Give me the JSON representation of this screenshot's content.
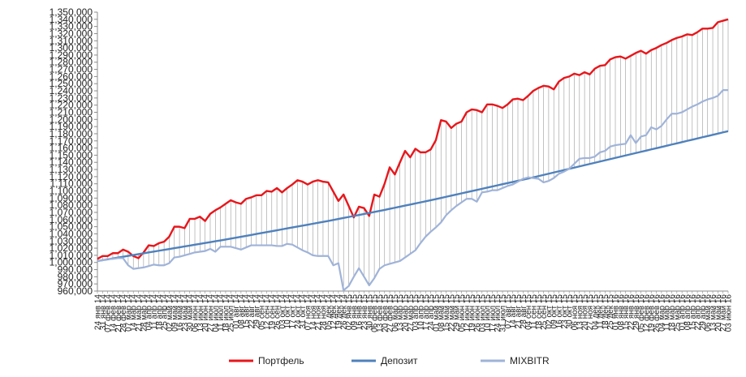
{
  "chart_data": {
    "type": "line",
    "title": "",
    "xlabel": "",
    "ylabel": "",
    "ylim": [
      960000,
      1350000
    ],
    "yticks": [
      960000,
      970000,
      980000,
      990000,
      1000000,
      1010000,
      1020000,
      1030000,
      1040000,
      1050000,
      1060000,
      1070000,
      1080000,
      1090000,
      1100000,
      1110000,
      1120000,
      1130000,
      1140000,
      1150000,
      1160000,
      1170000,
      1180000,
      1190000,
      1200000,
      1210000,
      1220000,
      1230000,
      1240000,
      1250000,
      1260000,
      1270000,
      1280000,
      1290000,
      1300000,
      1310000,
      1320000,
      1330000,
      1340000,
      1350000
    ],
    "ytick_labels": [
      "960,000",
      "970,000",
      "980,000",
      "990,000",
      "1,000,000",
      "1,010,000",
      "1,020,000",
      "1,030,000",
      "1,040,000",
      "1,050,000",
      "1,060,000",
      "1,070,000",
      "1,080,000",
      "1,090,000",
      "1,100,000",
      "1,110,000",
      "1,120,000",
      "1,130,000",
      "1,140,000",
      "1,150,000",
      "1,160,000",
      "1,170,000",
      "1,180,000",
      "1,190,000",
      "1,200,000",
      "1,210,000",
      "1,220,000",
      "1,230,000",
      "1,240,000",
      "1,250,000",
      "1,260,000",
      "1,270,000",
      "1,280,000",
      "1,290,000",
      "1,300,000",
      "1,310,000",
      "1,320,000",
      "1,330,000",
      "1,340,000",
      "1,350,000"
    ],
    "grid": "vertical drop lines between series",
    "legend_position": "bottom",
    "categories": [
      "24 янв 14",
      "31 янв 14",
      "07 фев 14",
      "14 фев 14",
      "21 фев 14",
      "28 фев 14",
      "07 мар 14",
      "14 мар 14",
      "21 мар 14",
      "28 мар 14",
      "04 апр 14",
      "11 апр 14",
      "18 апр 14",
      "25 апр 14",
      "02 май 14",
      "09 май 14",
      "16 май 14",
      "23 май 14",
      "30 май 14",
      "06 июн 14",
      "13 июн 14",
      "20 июн 14",
      "27 июн 14",
      "04 июл 14",
      "11 июл 14",
      "18 июл 14",
      "25 июл 14",
      "01 авг 14",
      "08 авг 14",
      "15 авг 14",
      "22 авг 14",
      "29 авг 14",
      "05 сен 14",
      "12 сен 14",
      "19 сен 14",
      "26 сен 14",
      "03 окт 14",
      "10 окт 14",
      "17 окт 14",
      "24 окт 14",
      "31 окт 14",
      "07 ноя 14",
      "14 ноя 14",
      "21 ноя 14",
      "28 ноя 14",
      "05 дек 14",
      "12 дек 14",
      "19 дек 14",
      "26 дек 14",
      "02 янв 15",
      "09 янв 15",
      "16 янв 15",
      "23 янв 15",
      "30 янв 15",
      "06 фев 15",
      "13 фев 15",
      "20 фев 15",
      "27 фев 15",
      "06 мар 15",
      "13 мар 15",
      "20 мар 15",
      "27 мар 15",
      "03 апр 15",
      "10 апр 15",
      "17 апр 15",
      "24 апр 15",
      "01 май 15",
      "08 май 15",
      "15 май 15",
      "22 май 15",
      "29 май 15",
      "05 июн 15",
      "12 июн 15",
      "19 июн 15",
      "26 июн 15",
      "03 июл 15",
      "10 июл 15",
      "17 июл 15",
      "24 июл 15",
      "31 июл 15",
      "07 авг 15",
      "14 авг 15",
      "21 авг 15",
      "28 авг 15",
      "04 сен 15",
      "11 сен 15",
      "18 сен 15",
      "25 сен 15",
      "02 окт 15",
      "09 окт 15",
      "16 окт 15",
      "23 окт 15",
      "30 окт 15",
      "06 ноя 15",
      "13 ноя 15",
      "20 ноя 15",
      "27 ноя 15",
      "04 дек 15",
      "11 дек 15",
      "18 дек 15",
      "25 дек 15",
      "01 янв 16",
      "08 янв 16",
      "15 янв 16",
      "22 янв 16",
      "29 янв 16",
      "05 фев 16",
      "12 фев 16",
      "19 фев 16",
      "26 фев 16",
      "04 мар 16",
      "11 мар 16",
      "18 мар 16",
      "25 мар 16",
      "01 апр 16",
      "08 апр 16",
      "15 апр 16",
      "22 апр 16",
      "29 апр 16",
      "06 май 16",
      "13 май 16",
      "20 май 16",
      "27 май 16",
      "03 июн 16"
    ],
    "series": [
      {
        "name": "Портфель",
        "color": "#e8161b",
        "values": [
          1005000,
          1009000,
          1009000,
          1013000,
          1013000,
          1018000,
          1015000,
          1009000,
          1006000,
          1014000,
          1024000,
          1023000,
          1027000,
          1029000,
          1036000,
          1050000,
          1050000,
          1048000,
          1061000,
          1061000,
          1064000,
          1058000,
          1068000,
          1073000,
          1077000,
          1082000,
          1087000,
          1084000,
          1082000,
          1089000,
          1091000,
          1094000,
          1094000,
          1100000,
          1099000,
          1104000,
          1098000,
          1104000,
          1109000,
          1115000,
          1113000,
          1109000,
          1113000,
          1115000,
          1113000,
          1112000,
          1099000,
          1086000,
          1095000,
          1079000,
          1063000,
          1078000,
          1076000,
          1065000,
          1095000,
          1092000,
          1110000,
          1133000,
          1123000,
          1140000,
          1156000,
          1147000,
          1159000,
          1154000,
          1154000,
          1158000,
          1171000,
          1199000,
          1197000,
          1188000,
          1194000,
          1197000,
          1210000,
          1214000,
          1213000,
          1210000,
          1221000,
          1221000,
          1219000,
          1216000,
          1221000,
          1228000,
          1229000,
          1227000,
          1233000,
          1240000,
          1244000,
          1247000,
          1246000,
          1242000,
          1253000,
          1258000,
          1260000,
          1264000,
          1262000,
          1266000,
          1263000,
          1271000,
          1275000,
          1276000,
          1284000,
          1287000,
          1288000,
          1285000,
          1289000,
          1293000,
          1296000,
          1292000,
          1297000,
          1300000,
          1304000,
          1307000,
          1311000,
          1314000,
          1316000,
          1319000,
          1318000,
          1322000,
          1327000,
          1327000,
          1328000,
          1336000,
          1338000,
          1340000
        ]
      },
      {
        "name": "Депозит",
        "color": "#4f81bd",
        "values": [
          1002000,
          1003200,
          1004400,
          1005600,
          1006800,
          1008000,
          1009200,
          1010400,
          1011600,
          1012800,
          1014000,
          1015200,
          1016400,
          1017600,
          1018800,
          1020000,
          1021200,
          1022400,
          1023600,
          1024800,
          1026000,
          1027200,
          1028400,
          1029600,
          1030800,
          1032000,
          1033300,
          1034600,
          1035900,
          1037200,
          1038500,
          1039800,
          1041100,
          1042400,
          1043700,
          1045000,
          1046300,
          1047600,
          1048900,
          1050200,
          1051500,
          1052800,
          1054100,
          1055400,
          1056700,
          1058000,
          1059400,
          1060800,
          1062200,
          1063600,
          1065000,
          1066400,
          1067800,
          1069200,
          1070600,
          1072000,
          1073500,
          1075000,
          1076500,
          1078000,
          1079500,
          1081000,
          1082500,
          1084000,
          1085500,
          1087000,
          1088600,
          1090200,
          1091800,
          1093400,
          1095000,
          1096600,
          1098200,
          1099800,
          1101400,
          1103000,
          1104600,
          1106200,
          1107800,
          1109400,
          1111000,
          1112600,
          1114200,
          1115800,
          1117400,
          1119000,
          1120700,
          1122400,
          1124100,
          1125800,
          1127500,
          1129200,
          1130900,
          1132600,
          1134300,
          1136000,
          1137700,
          1139400,
          1141100,
          1142800,
          1144500,
          1146200,
          1147900,
          1149600,
          1151300,
          1153000,
          1154700,
          1156400,
          1158100,
          1159800,
          1161500,
          1163200,
          1164900,
          1166600,
          1168300,
          1170000,
          1171700,
          1173400,
          1175100,
          1176800,
          1178500,
          1180200,
          1181900,
          1183600
        ]
      },
      {
        "name": "MIXBITR",
        "color": "#9fb3d9",
        "values": [
          1002000,
          1003000,
          1005000,
          1005000,
          1006000,
          1006000,
          996000,
          991000,
          992000,
          993000,
          995000,
          997000,
          996000,
          996000,
          999000,
          1007000,
          1008000,
          1010000,
          1012000,
          1014000,
          1015000,
          1016000,
          1019000,
          1015000,
          1022000,
          1022000,
          1022000,
          1020000,
          1018000,
          1021000,
          1024000,
          1024000,
          1024000,
          1024000,
          1024000,
          1023000,
          1023000,
          1026000,
          1025000,
          1021000,
          1017000,
          1014000,
          1010000,
          1009000,
          1009000,
          1009000,
          996000,
          999000,
          961000,
          967000,
          980000,
          992000,
          980000,
          968000,
          978000,
          991000,
          996000,
          998000,
          1000000,
          1002000,
          1007000,
          1012000,
          1017000,
          1027000,
          1036000,
          1043000,
          1049000,
          1056000,
          1066000,
          1073000,
          1079000,
          1084000,
          1089000,
          1089000,
          1085000,
          1098000,
          1099000,
          1101000,
          1101000,
          1104000,
          1107000,
          1109000,
          1113000,
          1117000,
          1119000,
          1118000,
          1117000,
          1112000,
          1114000,
          1118000,
          1124000,
          1127000,
          1131000,
          1138000,
          1145000,
          1146000,
          1146000,
          1148000,
          1154000,
          1156000,
          1162000,
          1164000,
          1165000,
          1166000,
          1178000,
          1167000,
          1176000,
          1178000,
          1189000,
          1186000,
          1191000,
          1200000,
          1208000,
          1208000,
          1210000,
          1214000,
          1218000,
          1221000,
          1225000,
          1228000,
          1230000,
          1233000,
          1241000,
          1241000
        ]
      }
    ]
  }
}
